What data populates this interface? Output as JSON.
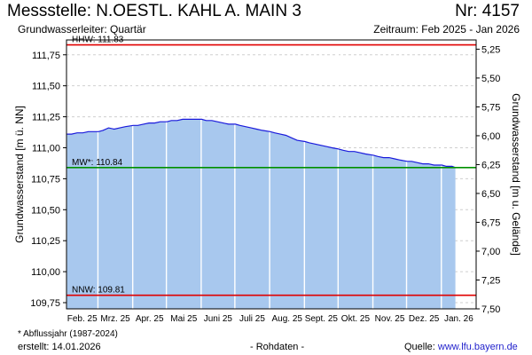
{
  "header": {
    "title": "Messstelle: N.OESTL. KAHL A. MAIN 3",
    "number": "Nr: 4157",
    "aquifer": "Grundwasserleiter: Quartär",
    "period": "Zeitraum: Feb 2025 - Jan 2026"
  },
  "footer": {
    "note": "* Abflussjahr (1987-2024)",
    "created": "erstellt:  14.01.2026",
    "raw": "- Rohdaten -",
    "source_label": "Quelle: ",
    "source_link": "www.lfu.bayern.de"
  },
  "chart_data": {
    "type": "area",
    "ylabel": "Grundwasserstand [m ü. NN]",
    "ylabel_right": "Grundwasserstand [m u. Gelände]",
    "ylim": [
      109.7,
      111.87
    ],
    "ylim_right": [
      7.5,
      5.17
    ],
    "yticks": [
      "109,75",
      "110,00",
      "110,25",
      "110,50",
      "110,75",
      "111,00",
      "111,25",
      "111,50",
      "111,75"
    ],
    "yticks_right": [
      "5,25",
      "5,50",
      "5,75",
      "6,00",
      "6,25",
      "6,50",
      "6,75",
      "7,00",
      "7,25",
      "7,50"
    ],
    "xticks": [
      "Feb. 25",
      "Mrz. 25",
      "Apr. 25",
      "Mai 25",
      "Juni 25",
      "Juli 25",
      "Aug. 25",
      "Sept. 25",
      "Okt. 25",
      "Nov. 25",
      "Dez. 25",
      "Jan. 26"
    ],
    "x_start": "2025-02-01",
    "x_end": "2026-01-31",
    "grid": true,
    "area_color": "#a8c8ee",
    "line_color": "#1a1adb",
    "reference_lines": [
      {
        "label": "HHW: 111.83",
        "value": 111.83,
        "color": "#e00000"
      },
      {
        "label": "MW*: 110.84",
        "value": 110.84,
        "color": "#009000"
      },
      {
        "label": "NNW: 109.81",
        "value": 109.81,
        "color": "#e00000"
      }
    ],
    "series": [
      {
        "x": [
          "2025-02-01",
          "2025-02-05",
          "2025-02-10",
          "2025-02-15",
          "2025-02-20",
          "2025-02-25",
          "2025-03-01",
          "2025-03-05",
          "2025-03-10",
          "2025-03-15",
          "2025-03-20",
          "2025-03-25",
          "2025-04-01",
          "2025-04-05",
          "2025-04-10",
          "2025-04-15",
          "2025-04-20",
          "2025-04-25",
          "2025-05-01",
          "2025-05-05",
          "2025-05-10",
          "2025-05-15",
          "2025-05-20",
          "2025-05-25",
          "2025-06-01",
          "2025-06-05",
          "2025-06-10",
          "2025-06-15",
          "2025-06-20",
          "2025-06-25",
          "2025-07-01",
          "2025-07-05",
          "2025-07-10",
          "2025-07-15",
          "2025-07-20",
          "2025-07-25",
          "2025-08-01",
          "2025-08-05",
          "2025-08-10",
          "2025-08-15",
          "2025-08-20",
          "2025-08-25",
          "2025-09-01",
          "2025-09-05",
          "2025-09-10",
          "2025-09-15",
          "2025-09-20",
          "2025-09-25",
          "2025-10-01",
          "2025-10-05",
          "2025-10-10",
          "2025-10-15",
          "2025-10-20",
          "2025-10-25",
          "2025-11-01",
          "2025-11-05",
          "2025-11-10",
          "2025-11-15",
          "2025-11-20",
          "2025-11-25",
          "2025-12-01",
          "2025-12-05",
          "2025-12-10",
          "2025-12-15",
          "2025-12-20",
          "2025-12-25",
          "2026-01-01",
          "2026-01-05",
          "2026-01-10",
          "2026-01-13"
        ],
        "values": [
          111.11,
          111.11,
          111.12,
          111.12,
          111.13,
          111.13,
          111.13,
          111.14,
          111.16,
          111.15,
          111.16,
          111.17,
          111.18,
          111.18,
          111.19,
          111.2,
          111.2,
          111.21,
          111.21,
          111.22,
          111.22,
          111.23,
          111.23,
          111.23,
          111.23,
          111.22,
          111.22,
          111.21,
          111.2,
          111.19,
          111.19,
          111.18,
          111.17,
          111.16,
          111.15,
          111.14,
          111.13,
          111.12,
          111.11,
          111.1,
          111.08,
          111.06,
          111.05,
          111.04,
          111.03,
          111.02,
          111.01,
          111.0,
          110.99,
          110.98,
          110.97,
          110.97,
          110.96,
          110.95,
          110.94,
          110.93,
          110.92,
          110.92,
          110.91,
          110.9,
          110.89,
          110.89,
          110.88,
          110.87,
          110.87,
          110.86,
          110.86,
          110.85,
          110.85,
          110.84
        ]
      }
    ]
  }
}
